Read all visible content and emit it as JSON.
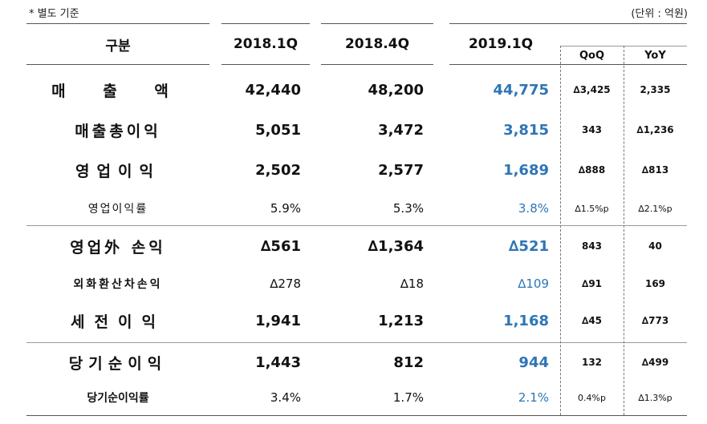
{
  "note_left": "* 별도 기준",
  "note_right": "(단위 : 억원)",
  "headers": {
    "label": "구분",
    "cols": [
      "2018.1Q",
      "2018.4Q",
      "2019.1Q"
    ],
    "qoq": "QoQ",
    "yoy": "YoY"
  },
  "rows": [
    {
      "label": "매 출 액",
      "v1": "42,440",
      "v2": "48,200",
      "v3": "44,775",
      "qoq": "∆3,425",
      "yoy": "2,335"
    },
    {
      "label": "매출총이익",
      "v1": "5,051",
      "v2": "3,472",
      "v3": "3,815",
      "qoq": "343",
      "yoy": "∆1,236"
    },
    {
      "label": "영업이익",
      "v1": "2,502",
      "v2": "2,577",
      "v3": "1,689",
      "qoq": "∆888",
      "yoy": "∆813"
    },
    {
      "label": "영업이익률",
      "v1": "5.9%",
      "v2": "5.3%",
      "v3": "3.8%",
      "qoq": "∆1.5%p",
      "yoy": "∆2.1%p"
    },
    {
      "label": "영업外 손익",
      "v1": "∆561",
      "v2": "∆1,364",
      "v3": "∆521",
      "qoq": "843",
      "yoy": "40"
    },
    {
      "label": "외화환산차손익",
      "v1": "∆278",
      "v2": "∆18",
      "v3": "∆109",
      "qoq": "∆91",
      "yoy": "169"
    },
    {
      "label": "세전이익",
      "v1": "1,941",
      "v2": "1,213",
      "v3": "1,168",
      "qoq": "∆45",
      "yoy": "∆773"
    },
    {
      "label": "당기순이익",
      "v1": "1,443",
      "v2": "812",
      "v3": "944",
      "qoq": "132",
      "yoy": "∆499"
    },
    {
      "label": "당기순이익률",
      "v1": "3.4%",
      "v2": "1.7%",
      "v3": "2.1%",
      "qoq": "0.4%p",
      "yoy": "∆1.3%p"
    }
  ]
}
